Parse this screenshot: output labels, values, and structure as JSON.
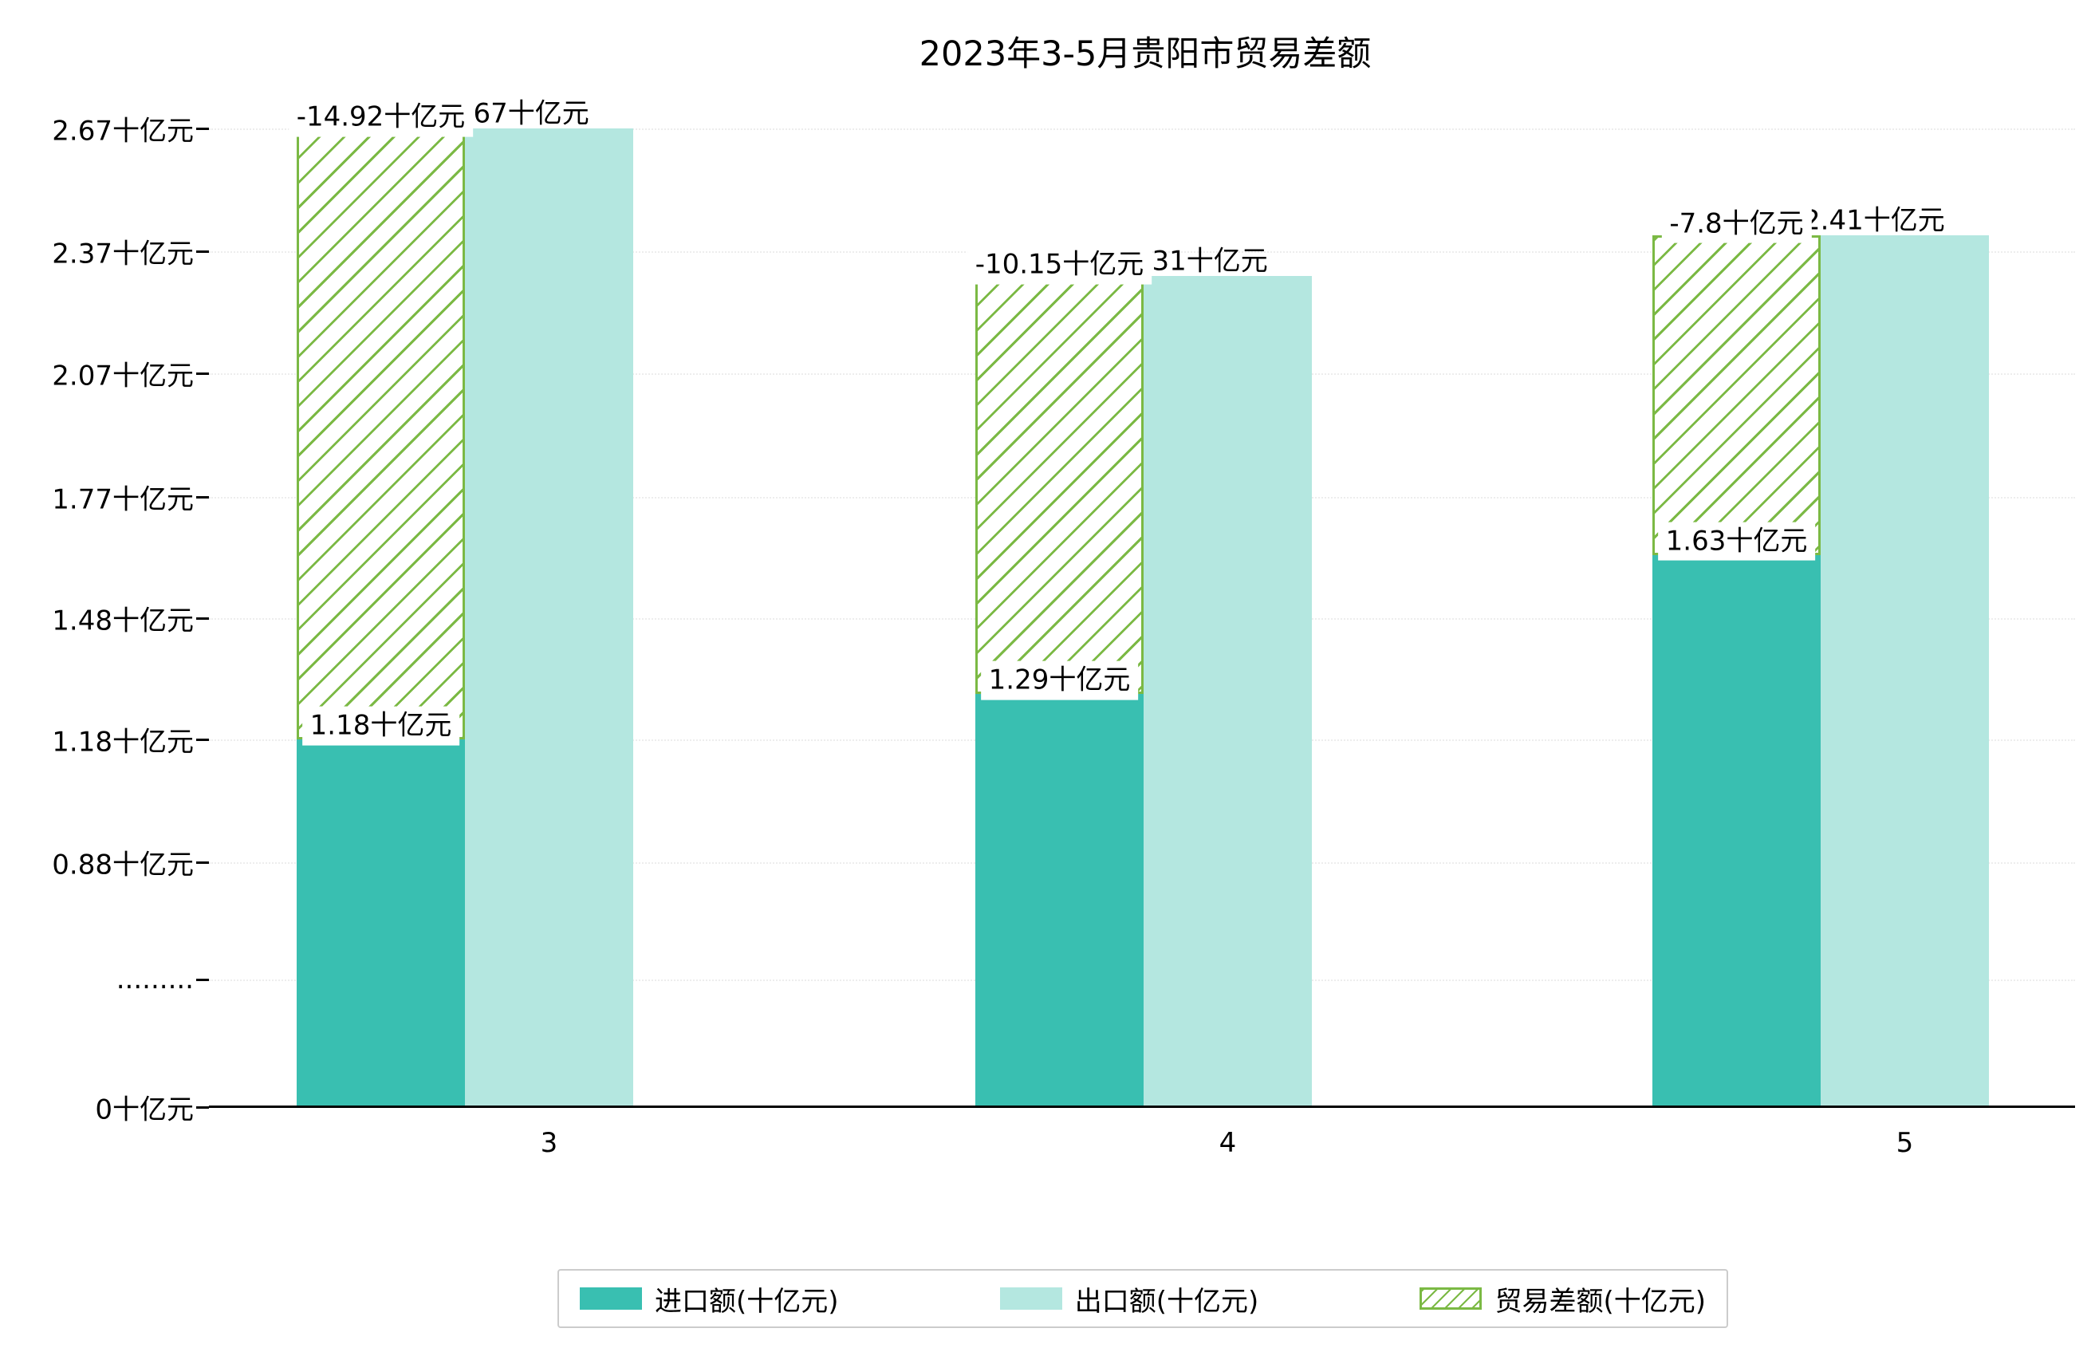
{
  "title": "2023年3-5月贵阳市贸易差额",
  "y_axis": {
    "tick_labels": [
      "2.67十亿元",
      "2.37十亿元",
      "2.07十亿元",
      "1.77十亿元",
      "1.48十亿元",
      "1.18十亿元",
      "0.88十亿元",
      ".........",
      "0十亿元"
    ]
  },
  "x_axis": {
    "tick_labels": [
      "3",
      "4",
      "5"
    ]
  },
  "legend": {
    "items": [
      {
        "label": "进口额(十亿元)",
        "swatch": "import-solid"
      },
      {
        "label": "出口额(十亿元)",
        "swatch": "export-solid"
      },
      {
        "label": "贸易差额(十亿元)",
        "swatch": "diff-hatched"
      }
    ]
  },
  "colors": {
    "import_bar": "#39bfb1",
    "export_bar": "#b4e7e0",
    "diff_hatch": "#7bb944",
    "axis": "#000000",
    "grid": "#ededed",
    "background": "#ffffff",
    "legend_border": "#cccccc"
  },
  "chart_data": {
    "type": "bar",
    "title": "2023年3-5月贵阳市贸易差额",
    "categories": [
      "3",
      "4",
      "5"
    ],
    "unit": "十亿元",
    "series": [
      {
        "name": "进口额(十亿元)",
        "style": "solid-teal",
        "values": [
          1.18,
          1.29,
          1.63
        ],
        "data_labels": [
          "1.18十亿元",
          "1.29十亿元",
          "1.63十亿元"
        ]
      },
      {
        "name": "出口额(十亿元)",
        "style": "solid-light-teal",
        "values": [
          2.67,
          2.31,
          2.41
        ],
        "data_labels": [
          "2.67十亿元",
          "2.31十亿元",
          "2.41十亿元"
        ]
      },
      {
        "name": "贸易差额(十亿元)",
        "style": "green-hatched-span",
        "values": [
          -14.92,
          -10.15,
          -7.8
        ],
        "data_labels": [
          "-14.92十亿元",
          "-10.15十亿元",
          "-7.8十亿元"
        ],
        "span_note": "hatched bar drawn over import column spanning from import bar top to export bar top"
      }
    ],
    "y_axis": {
      "tick_labels": [
        "2.67十亿元",
        "2.37十亿元",
        "2.07十亿元",
        "1.77十亿元",
        "1.48十亿元",
        "1.18十亿元",
        "0.88十亿元",
        ".........",
        "0十亿元"
      ],
      "tick_values": [
        2.67,
        2.37,
        2.07,
        1.77,
        1.48,
        1.18,
        0.88,
        null,
        0
      ],
      "axis_break_between": [
        0,
        0.88
      ],
      "grid": "dotted"
    },
    "legend_position": "bottom"
  }
}
